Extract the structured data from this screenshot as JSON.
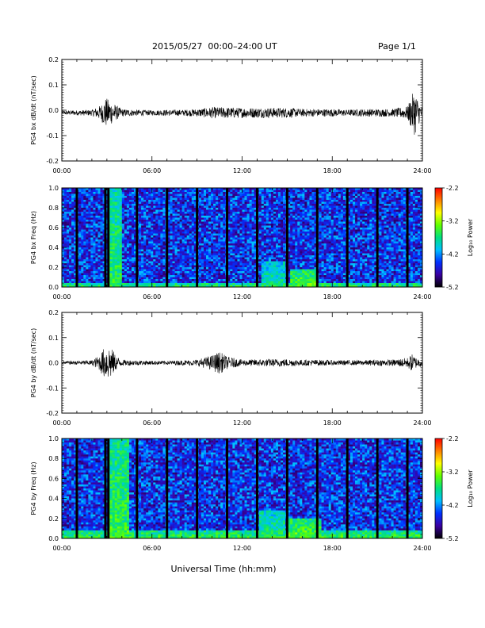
{
  "header": {
    "title": "2015/05/27  00:00–24:00 UT",
    "page": "Page 1/1"
  },
  "x_axis_common": {
    "tick_labels": [
      "00:00",
      "06:00",
      "12:00",
      "18:00",
      "24:00"
    ],
    "xlabel": "Universal Time (hh:mm)",
    "xlim_hours": [
      0,
      24
    ]
  },
  "colorbar": {
    "label": "Log₁₀ Power",
    "tick_labels": [
      "-2.2",
      "-3.2",
      "-4.2",
      "-5.2"
    ],
    "range": [
      -5.2,
      -2.2
    ],
    "colormap": [
      "#000000",
      "#3a00a0",
      "#0030ff",
      "#00c0ff",
      "#00e080",
      "#60ff00",
      "#ffff00",
      "#ff8000",
      "#ff0000"
    ]
  },
  "chart_data": [
    {
      "type": "line",
      "ylabel": "PG4 bx dB/dt (nT/sec)",
      "ylim": [
        -0.2,
        0.2
      ],
      "y_ticks": [
        "0.2",
        "0.1",
        "0.0",
        "-0.1",
        "-0.2"
      ],
      "baseline": -0.01,
      "series": [
        {
          "x": [
            0,
            1,
            2,
            2.6,
            2.9,
            3.2,
            3.6,
            4,
            5,
            6,
            7,
            8,
            9,
            10,
            11,
            12,
            13,
            14,
            15,
            16,
            17,
            18,
            19,
            20,
            21,
            22,
            23,
            23.3,
            23.5,
            23.8,
            24
          ],
          "amplitude": [
            0.008,
            0.01,
            0.012,
            0.03,
            0.06,
            0.05,
            0.03,
            0.015,
            0.012,
            0.01,
            0.012,
            0.012,
            0.015,
            0.022,
            0.022,
            0.02,
            0.02,
            0.02,
            0.02,
            0.015,
            0.015,
            0.015,
            0.012,
            0.015,
            0.015,
            0.015,
            0.025,
            0.07,
            0.09,
            0.04,
            0.02
          ]
        }
      ]
    },
    {
      "type": "heatmap",
      "ylabel": "PG4 bx Freq (Hz)",
      "ylim": [
        0.0,
        1.0
      ],
      "y_ticks": [
        "1.0",
        "0.8",
        "0.6",
        "0.4",
        "0.2",
        "0.0"
      ],
      "gap_hours": [
        1.0,
        2.9,
        3.1,
        5.0,
        7.0,
        9.0,
        11.0,
        13.0,
        15.0,
        17.0,
        19.0,
        21.0,
        23.0
      ],
      "features": [
        {
          "x_start": 3.0,
          "x_end": 4.0,
          "f_max": 1.0,
          "level": -3.6
        },
        {
          "x_start": 13.3,
          "x_end": 14.8,
          "f_max": 0.25,
          "level": -3.8
        },
        {
          "x_start": 15.2,
          "x_end": 17.0,
          "f_max": 0.18,
          "level": -3.4
        },
        {
          "x_start": 0.0,
          "x_end": 24.0,
          "f_max": 0.05,
          "level": -3.6
        }
      ]
    },
    {
      "type": "line",
      "ylabel": "PG4 by dB/dt (nT/sec)",
      "ylim": [
        -0.2,
        0.2
      ],
      "y_ticks": [
        "0.2",
        "0.1",
        "0.0",
        "-0.1",
        "-0.2"
      ],
      "baseline": 0.0,
      "series": [
        {
          "x": [
            0,
            1,
            2,
            2.5,
            2.8,
            3.2,
            3.6,
            4,
            5,
            6,
            7,
            8,
            9,
            10,
            10.5,
            11,
            12,
            13,
            14,
            15,
            16,
            17,
            18,
            19,
            20,
            21,
            22,
            23,
            23.3,
            23.6,
            24
          ],
          "amplitude": [
            0.006,
            0.008,
            0.01,
            0.03,
            0.06,
            0.07,
            0.03,
            0.012,
            0.01,
            0.008,
            0.008,
            0.01,
            0.012,
            0.03,
            0.045,
            0.025,
            0.012,
            0.014,
            0.015,
            0.015,
            0.012,
            0.012,
            0.01,
            0.01,
            0.01,
            0.012,
            0.012,
            0.02,
            0.035,
            0.02,
            0.015
          ]
        }
      ]
    },
    {
      "type": "heatmap",
      "ylabel": "PG4 by Freq (Hz)",
      "ylim": [
        0.0,
        1.0
      ],
      "y_ticks": [
        "1.0",
        "0.8",
        "0.6",
        "0.4",
        "0.2",
        "0.0"
      ],
      "gap_hours": [
        1.0,
        2.9,
        3.1,
        5.0,
        7.0,
        9.0,
        11.0,
        13.0,
        15.0,
        17.0,
        19.0,
        21.0,
        23.0
      ],
      "features": [
        {
          "x_start": 3.0,
          "x_end": 4.5,
          "f_max": 1.0,
          "level": -3.5
        },
        {
          "x_start": 13.2,
          "x_end": 14.8,
          "f_max": 0.27,
          "level": -3.7
        },
        {
          "x_start": 15.0,
          "x_end": 17.2,
          "f_max": 0.2,
          "level": -3.4
        },
        {
          "x_start": 0.0,
          "x_end": 24.0,
          "f_max": 0.08,
          "level": -3.5
        }
      ]
    }
  ]
}
